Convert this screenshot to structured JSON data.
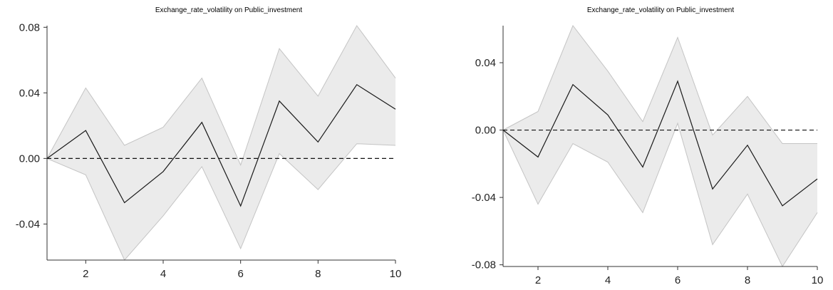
{
  "chart_data": [
    {
      "type": "line",
      "title": "Exchange_rate_volatility on Public_investment",
      "x": [
        1,
        2,
        3,
        4,
        5,
        6,
        7,
        8,
        9,
        10
      ],
      "series": [
        {
          "values": [
            0.0,
            0.017,
            -0.027,
            -0.008,
            0.022,
            -0.029,
            0.035,
            0.01,
            0.045,
            0.03
          ]
        }
      ],
      "band": {
        "upper": [
          0.0,
          0.043,
          0.008,
          0.019,
          0.049,
          -0.004,
          0.067,
          0.038,
          0.081,
          0.049
        ],
        "lower": [
          0.0,
          -0.01,
          -0.062,
          -0.035,
          -0.005,
          -0.055,
          0.003,
          -0.019,
          0.009,
          0.008
        ]
      },
      "zero_line": 0,
      "xticks": [
        "2",
        "4",
        "6",
        "8",
        "10"
      ],
      "yticks": [
        "-0.04",
        "0.00",
        "0.04",
        "0.08"
      ],
      "xlim": [
        1,
        10
      ],
      "ylim": [
        -0.062,
        0.081
      ],
      "colors": {
        "line": "#1a1a1a",
        "band": "#ebebeb",
        "band_edge": "#c4c4c4",
        "axis": "#333333"
      }
    },
    {
      "type": "line",
      "title": "Exchange_rate_volatility on Public_investment",
      "x": [
        1,
        2,
        3,
        4,
        5,
        6,
        7,
        8,
        9,
        10
      ],
      "series": [
        {
          "values": [
            0.0,
            -0.016,
            0.027,
            0.009,
            -0.022,
            0.029,
            -0.035,
            -0.009,
            -0.045,
            -0.029
          ]
        }
      ],
      "band": {
        "upper": [
          0.0,
          0.011,
          0.062,
          0.035,
          0.005,
          0.055,
          -0.003,
          0.02,
          -0.008,
          -0.008
        ],
        "lower": [
          0.0,
          -0.044,
          -0.008,
          -0.019,
          -0.049,
          0.004,
          -0.068,
          -0.038,
          -0.081,
          -0.049
        ]
      },
      "zero_line": 0,
      "xticks": [
        "2",
        "4",
        "6",
        "8",
        "10"
      ],
      "yticks": [
        "-0.08",
        "-0.04",
        "0.00",
        "0.04"
      ],
      "xlim": [
        1,
        10
      ],
      "ylim": [
        -0.081,
        0.062
      ],
      "colors": {
        "line": "#1a1a1a",
        "band": "#ebebeb",
        "band_edge": "#c4c4c4",
        "axis": "#333333"
      }
    }
  ]
}
